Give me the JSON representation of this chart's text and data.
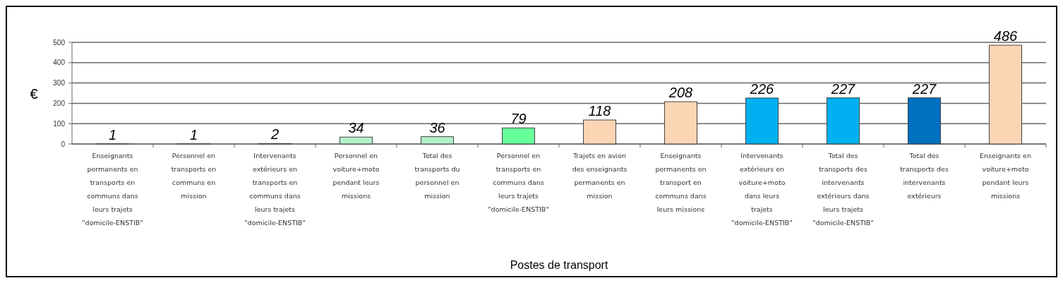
{
  "chart_data": {
    "type": "bar",
    "xlabel": "Postes de transport",
    "ylabel": "€",
    "categories": [
      "Enseignants permanents en transports en communs dans leurs trajets \"domicile-ENSTIB\"",
      "Personnel en transports en communs en mission",
      "Intervenants extérieurs en transports en communs dans leurs trajets \"domicile-ENSTIB\"",
      "Personnel en voiture+moto pendant leurs missions",
      "Total des transports du personnel en mission",
      "Personnel en transports en communs dans leurs trajets \"domicile-ENSTIB\"",
      "Trajets en avion des enseignants permanents en mission",
      "Enseignants permanents en transport en communs dans leurs missions",
      "Intervenants extérieurs en voiture+moto dans leurs trajets \"domicile-ENSTIB\"",
      "Total des transports des intervenants extérieurs dans leurs trajets \"domicile-ENSTIB\"",
      "Total des transports des intervenants extérieurs",
      "Enseignants en voiture+moto pendant leurs missions"
    ],
    "values": [
      1,
      1,
      2,
      34,
      36,
      79,
      118,
      208,
      226,
      227,
      227,
      486
    ],
    "colors": [
      "#fcd5b4",
      "#fcd5b4",
      "#333333",
      "#b3f0c8",
      "#b3f0c8",
      "#66ff99",
      "#fcd5b4",
      "#fcd5b4",
      "#00b0f0",
      "#00b0f0",
      "#0070c0",
      "#fcd5b4"
    ],
    "ylim": [
      0,
      500
    ],
    "yticks": [
      0,
      100,
      200,
      300,
      400,
      500
    ],
    "grid": "y",
    "data_labels": true
  }
}
